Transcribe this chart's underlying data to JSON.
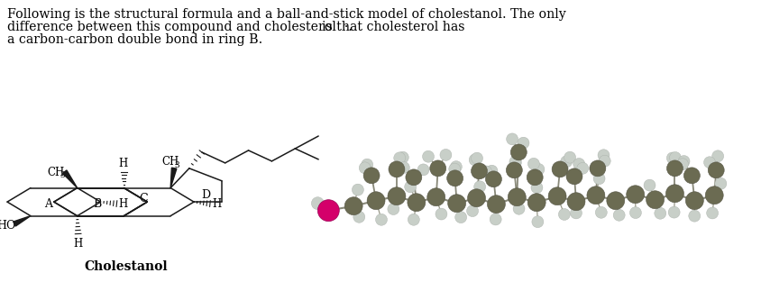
{
  "background_color": "#ffffff",
  "label_cholestanol": "Cholestanol",
  "carbon_color": "#6b6b52",
  "hydrogen_color": "#c8cfc8",
  "oxygen_color": "#d4006a",
  "font_size_title": 10.2,
  "font_size_labels": 8.5,
  "font_size_cholestanol": 10,
  "title_line1": "Following is the structural formula and a ball-and-stick model of cholestanol. The only",
  "title_line2a": "difference between this compound and cholesterol  ·.",
  "title_line2b": "is that cholesterol has",
  "title_line3": "a carbon-carbon double bond in ring B."
}
